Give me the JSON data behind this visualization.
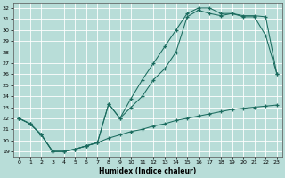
{
  "xlabel": "Humidex (Indice chaleur)",
  "bg_color": "#b8ddd8",
  "grid_color": "#d8ecea",
  "line_color": "#1a6b5e",
  "xlim": [
    -0.5,
    23.5
  ],
  "ylim": [
    18.5,
    32.5
  ],
  "xticks": [
    0,
    1,
    2,
    3,
    4,
    5,
    6,
    7,
    8,
    9,
    10,
    11,
    12,
    13,
    14,
    15,
    16,
    17,
    18,
    19,
    20,
    21,
    22,
    23
  ],
  "yticks": [
    19,
    20,
    21,
    22,
    23,
    24,
    25,
    26,
    27,
    28,
    29,
    30,
    31,
    32
  ],
  "line1_x": [
    0,
    1,
    2,
    3,
    4,
    5,
    6,
    7,
    8,
    9,
    10,
    11,
    12,
    13,
    14,
    15,
    16,
    17,
    18,
    19,
    20,
    21,
    22,
    23
  ],
  "line1_y": [
    22.0,
    21.5,
    20.5,
    19.0,
    19.0,
    19.2,
    19.5,
    19.8,
    20.2,
    20.5,
    20.8,
    21.0,
    21.3,
    21.5,
    21.8,
    22.0,
    22.2,
    22.4,
    22.6,
    22.8,
    22.9,
    23.0,
    23.1,
    23.2
  ],
  "line2_x": [
    0,
    1,
    2,
    3,
    4,
    5,
    6,
    7,
    8,
    9,
    10,
    11,
    12,
    13,
    14,
    15,
    16,
    17,
    18,
    19,
    20,
    21,
    22,
    23
  ],
  "line2_y": [
    22.0,
    21.5,
    20.5,
    19.0,
    19.0,
    19.2,
    19.5,
    19.8,
    23.3,
    22.0,
    23.0,
    24.0,
    25.5,
    26.5,
    28.0,
    31.2,
    31.8,
    31.5,
    31.3,
    31.5,
    31.3,
    31.3,
    31.2,
    26.0
  ],
  "line3_x": [
    0,
    1,
    2,
    3,
    4,
    5,
    6,
    7,
    8,
    9,
    10,
    11,
    12,
    13,
    14,
    15,
    16,
    17,
    18,
    19,
    20,
    21,
    22,
    23
  ],
  "line3_y": [
    22.0,
    21.5,
    20.5,
    19.0,
    19.0,
    19.2,
    19.5,
    19.8,
    23.3,
    22.0,
    23.8,
    25.5,
    27.0,
    28.5,
    30.0,
    31.5,
    32.0,
    32.0,
    31.5,
    31.5,
    31.2,
    31.2,
    29.5,
    26.0
  ]
}
